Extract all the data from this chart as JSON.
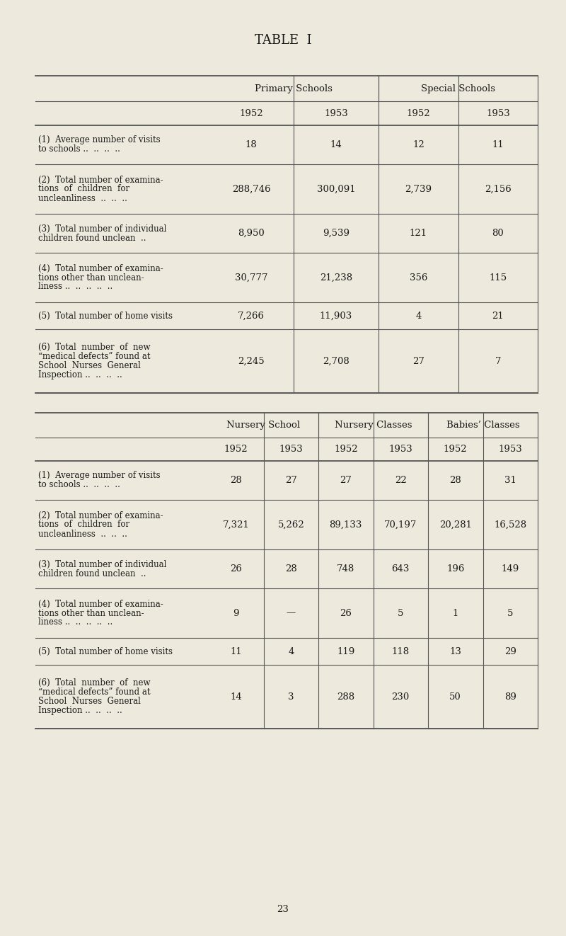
{
  "title": "TABLE  I",
  "background_color": "#ede9dc",
  "text_color": "#1a1a1a",
  "page_number": "23",
  "fig_width": 8.0,
  "fig_height": 13.22,
  "dpi": 100,
  "table1": {
    "col_groups": [
      "Primary Schools",
      "Special Schools"
    ],
    "years": [
      "1952",
      "1953",
      "1952",
      "1953"
    ],
    "rows": [
      {
        "label_lines": [
          "(1)  Average number of visits",
          "to schools ..  ..  ..  .."
        ],
        "values": [
          "18",
          "14",
          "12",
          "11"
        ],
        "n_label_lines": 2
      },
      {
        "label_lines": [
          "(2)  Total number of examina-",
          "tions  of  children  for",
          "uncleanliness  ..  ..  .."
        ],
        "values": [
          "288,746",
          "300,091",
          "2,739",
          "2,156"
        ],
        "n_label_lines": 3
      },
      {
        "label_lines": [
          "(3)  Total number of individual",
          "children found unclean  .."
        ],
        "values": [
          "8,950",
          "9,539",
          "121",
          "80"
        ],
        "n_label_lines": 2
      },
      {
        "label_lines": [
          "(4)  Total number of examina-",
          "tions other than unclean-",
          "liness ..  ..  ..  ..  .."
        ],
        "values": [
          "30,777",
          "21,238",
          "356",
          "115"
        ],
        "n_label_lines": 3
      },
      {
        "label_lines": [
          "(5)  Total number of home visits"
        ],
        "values": [
          "7,266",
          "11,903",
          "4",
          "21"
        ],
        "n_label_lines": 1
      },
      {
        "label_lines": [
          "(6)  Total  number  of  new",
          "“medical defects” found at",
          "School  Nurses  General",
          "Inspection ..  ..  ..  .."
        ],
        "values": [
          "2,245",
          "2,708",
          "27",
          "7"
        ],
        "n_label_lines": 4
      }
    ]
  },
  "table2": {
    "col_groups": [
      "Nursery School",
      "Nursery Classes",
      "Babies’ Classes"
    ],
    "years": [
      "1952",
      "1953",
      "1952",
      "1953",
      "1952",
      "1953"
    ],
    "rows": [
      {
        "label_lines": [
          "(1)  Average number of visits",
          "to schools ..  ..  ..  .."
        ],
        "values": [
          "28",
          "27",
          "27",
          "22",
          "28",
          "31"
        ],
        "n_label_lines": 2
      },
      {
        "label_lines": [
          "(2)  Total number of examina-",
          "tions  of  children  for",
          "uncleanliness  ..  ..  .."
        ],
        "values": [
          "7,321",
          "5,262",
          "89,133",
          "70,197",
          "20,281",
          "16,528"
        ],
        "n_label_lines": 3
      },
      {
        "label_lines": [
          "(3)  Total number of individual",
          "children found unclean  .."
        ],
        "values": [
          "26",
          "28",
          "748",
          "643",
          "196",
          "149"
        ],
        "n_label_lines": 2
      },
      {
        "label_lines": [
          "(4)  Total number of examina-",
          "tions other than unclean-",
          "liness ..  ..  ..  ..  .."
        ],
        "values": [
          "9",
          "—",
          "26",
          "5",
          "1",
          "5"
        ],
        "n_label_lines": 3
      },
      {
        "label_lines": [
          "(5)  Total number of home visits"
        ],
        "values": [
          "11",
          "4",
          "119",
          "118",
          "13",
          "29"
        ],
        "n_label_lines": 1
      },
      {
        "label_lines": [
          "(6)  Total  number  of  new",
          "“medical defects” found at",
          "School  Nurses  General",
          "Inspection ..  ..  ..  .."
        ],
        "values": [
          "14",
          "3",
          "288",
          "230",
          "50",
          "89"
        ],
        "n_label_lines": 4
      }
    ]
  }
}
